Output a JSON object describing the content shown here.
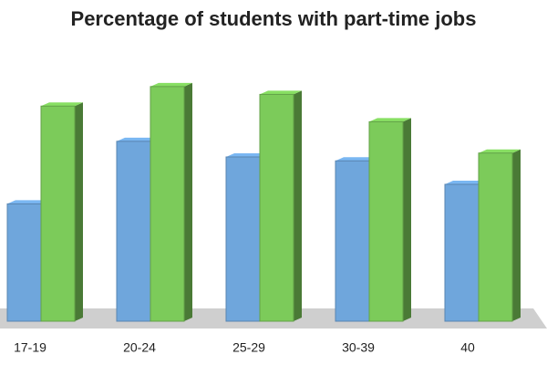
{
  "chart_data": {
    "type": "bar3d",
    "title": "Percentage of students with part-time jobs",
    "categories": [
      "17-19",
      "20-24",
      "25-29",
      "30-39",
      "40"
    ],
    "series": [
      {
        "color": "#6fa6dc",
        "values": [
          30,
          46,
          42,
          41,
          35
        ]
      },
      {
        "color": "#7ccb5a",
        "values": [
          55,
          60,
          58,
          51,
          43
        ]
      }
    ],
    "ylim": [
      0,
      70
    ]
  }
}
